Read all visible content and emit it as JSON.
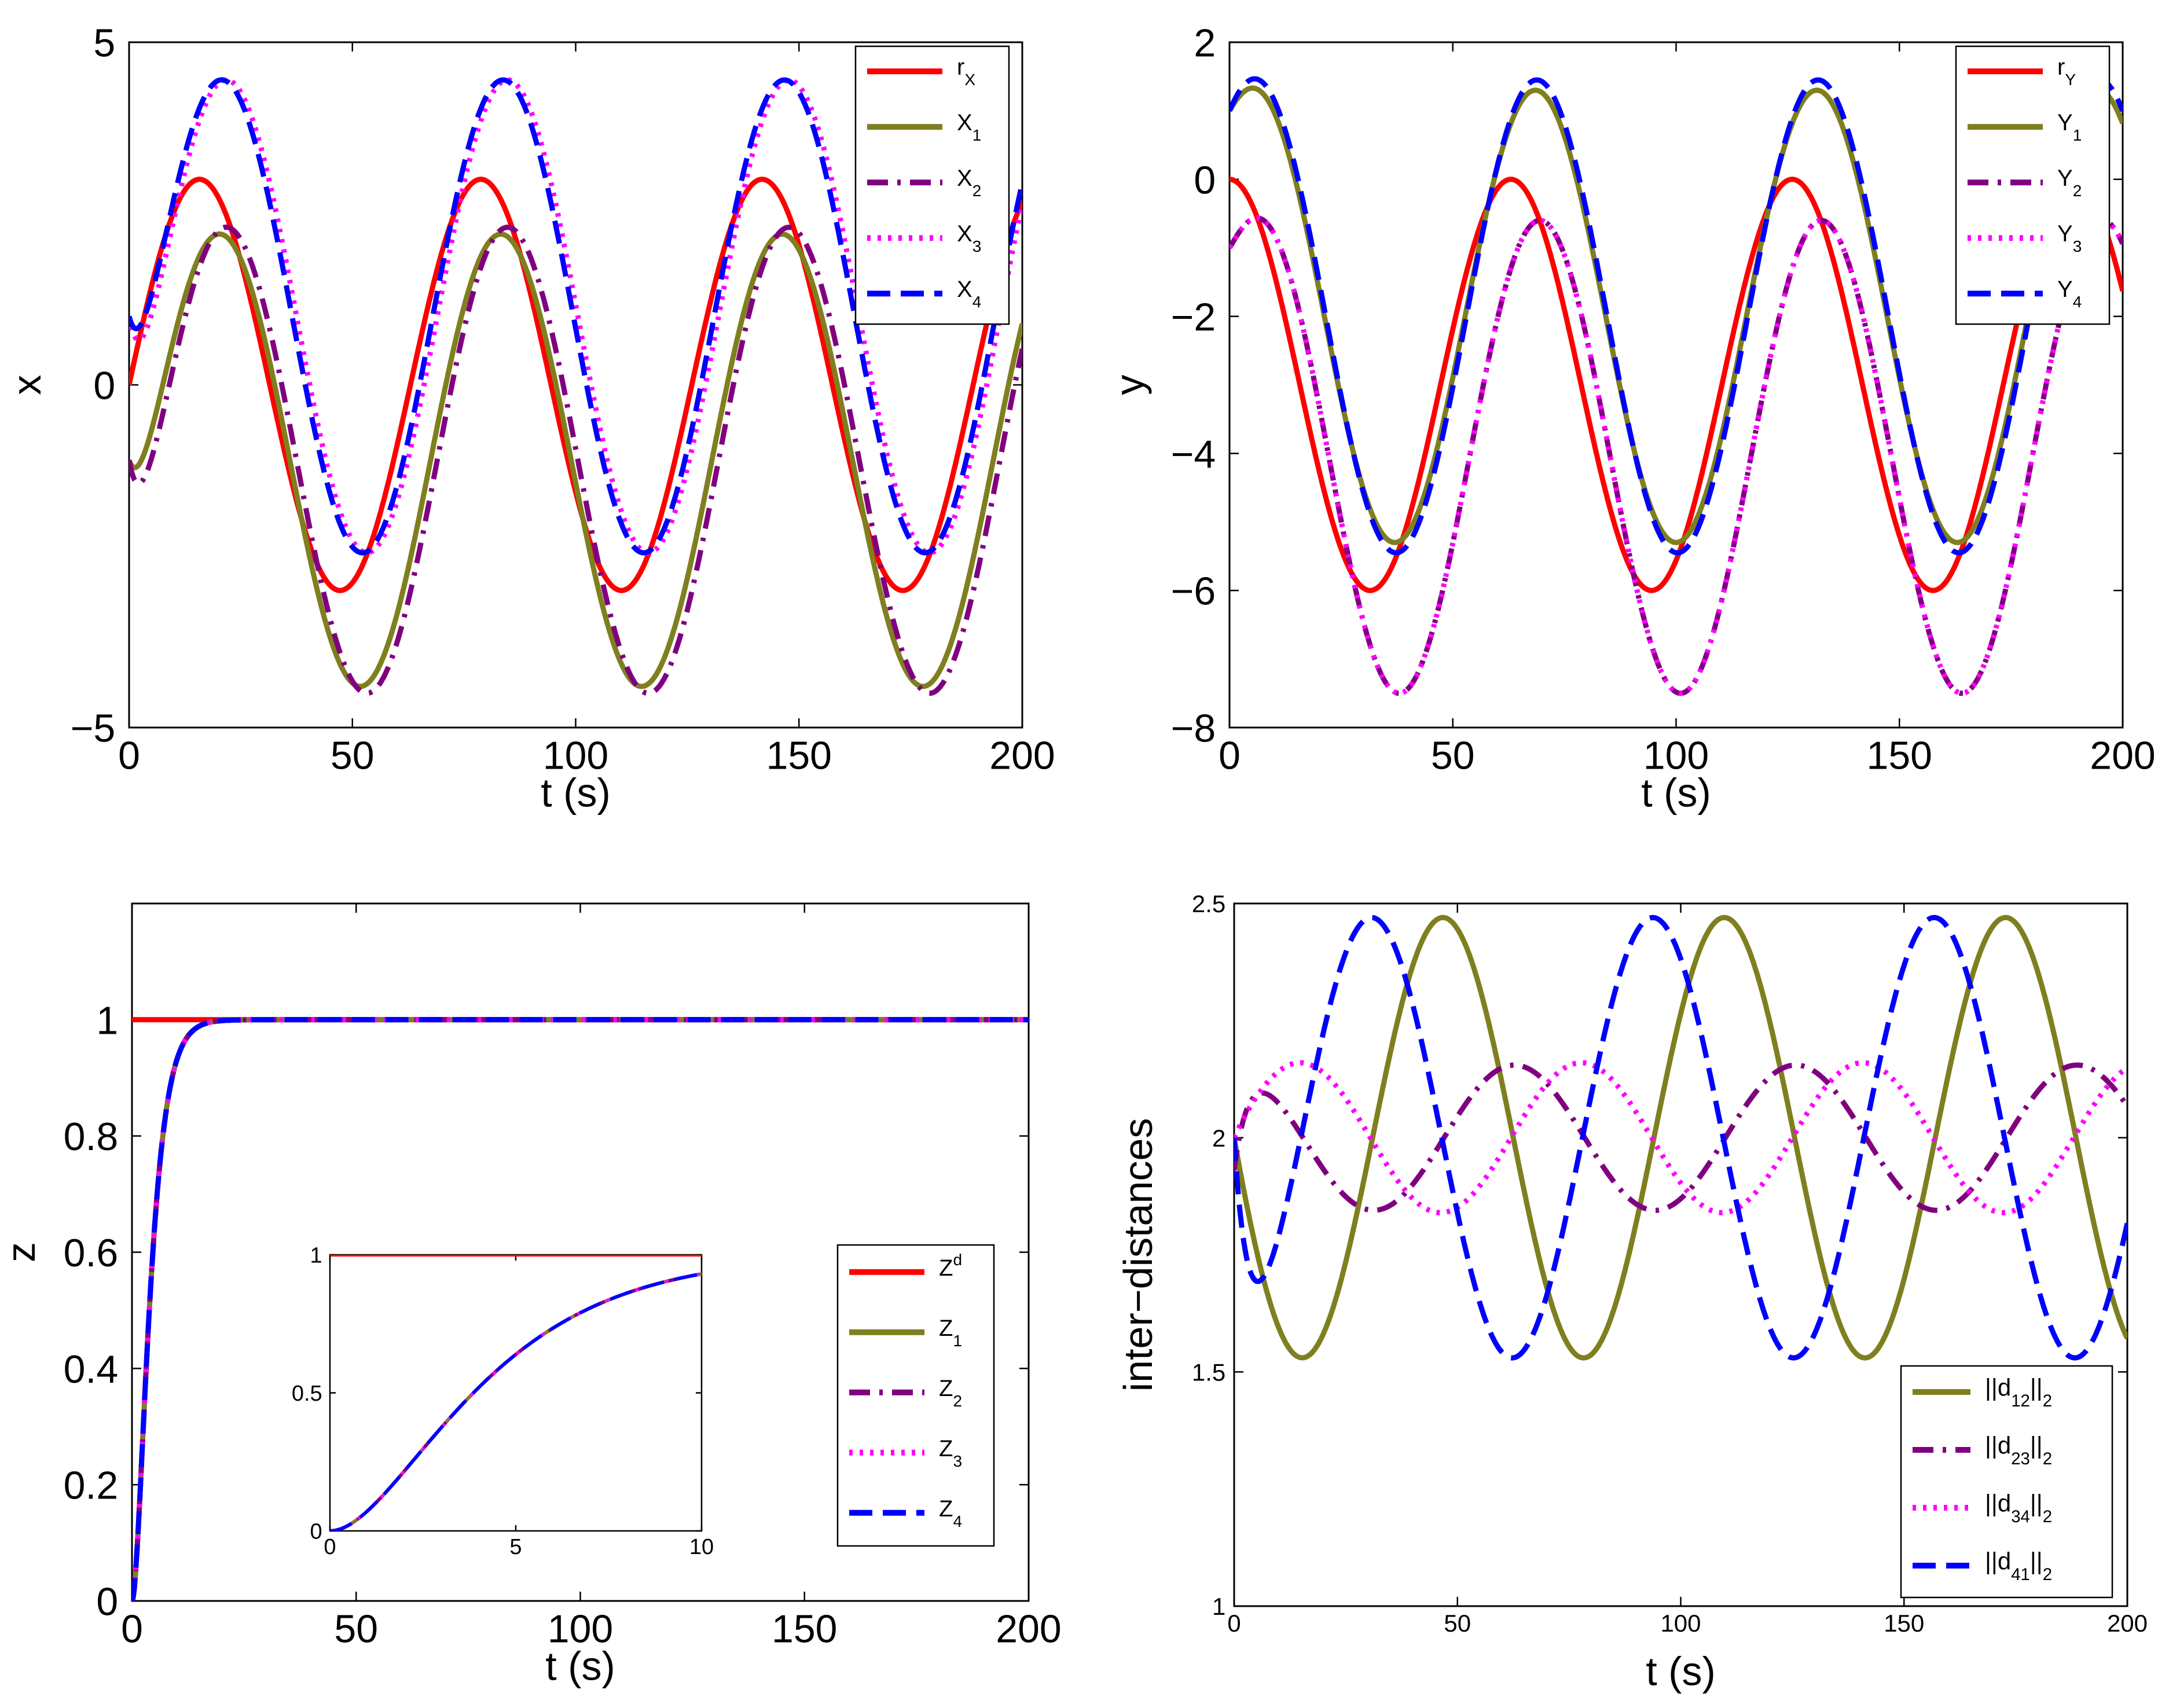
{
  "colors": {
    "red": "#ff0000",
    "olive": "#7f7f1f",
    "purple": "#800080",
    "magenta": "#ff00ff",
    "blue": "#0000ff"
  },
  "chart_data": [
    {
      "id": "x",
      "type": "line",
      "xlabel": "t (s)",
      "ylabel": "x",
      "xlim": [
        0,
        200
      ],
      "ylim": [
        -5,
        5
      ],
      "xticks": [
        0,
        50,
        100,
        150,
        200
      ],
      "xtick_labels": [
        "0",
        "50",
        "100",
        "150",
        "200"
      ],
      "yticks": [
        -5,
        0,
        5
      ],
      "ytick_labels": [
        "−5",
        "0",
        "5"
      ],
      "legend": "top-right",
      "series": [
        {
          "name": "r",
          "sub": "X",
          "sup": "",
          "color": "#ff0000",
          "style": "solid",
          "gen": {
            "type": "sine",
            "offset": 0,
            "amp": 3,
            "period": 63,
            "phase": 0,
            "a0": 0,
            "tau": 1
          }
        },
        {
          "name": "X",
          "sub": "1",
          "sup": "",
          "color": "#7f7f1f",
          "style": "solid",
          "gen": {
            "type": "sine",
            "offset": -1.1,
            "amp": 3.3,
            "period": 63,
            "phase": 4.5,
            "a0": -1.1,
            "tau": 3
          }
        },
        {
          "name": "X",
          "sub": "2",
          "sup": "",
          "color": "#800080",
          "style": "dashdot",
          "gen": {
            "type": "sine",
            "offset": -1.1,
            "amp": 3.4,
            "period": 63,
            "phase": 6,
            "a0": -1.1,
            "tau": 3
          }
        },
        {
          "name": "X",
          "sub": "3",
          "sup": "",
          "color": "#ff00ff",
          "style": "dotted",
          "gen": {
            "type": "sine",
            "offset": 1.0,
            "amp": 3.45,
            "period": 63,
            "phase": 6,
            "a0": 1.0,
            "tau": 3
          }
        },
        {
          "name": "X",
          "sub": "4",
          "sup": "",
          "color": "#0000ff",
          "style": "dashed",
          "gen": {
            "type": "sine",
            "offset": 1.0,
            "amp": 3.45,
            "period": 63,
            "phase": 5,
            "a0": 1.0,
            "tau": 3
          }
        }
      ]
    },
    {
      "id": "y",
      "type": "line",
      "xlabel": "t (s)",
      "ylabel": "y",
      "xlim": [
        0,
        200
      ],
      "ylim": [
        -8,
        2
      ],
      "xticks": [
        0,
        50,
        100,
        150,
        200
      ],
      "xtick_labels": [
        "0",
        "50",
        "100",
        "150",
        "200"
      ],
      "yticks": [
        -8,
        -6,
        -4,
        -2,
        0,
        2
      ],
      "ytick_labels": [
        "−8",
        "−6",
        "−4",
        "−2",
        "0",
        "2"
      ],
      "legend": "top-right",
      "series": [
        {
          "name": "r",
          "sub": "Y",
          "sup": "",
          "color": "#ff0000",
          "style": "solid",
          "gen": {
            "type": "cos",
            "offset": -3,
            "amp": 3,
            "period": 63,
            "phase": 0,
            "a0": 0,
            "tau": 1
          }
        },
        {
          "name": "Y",
          "sub": "1",
          "sup": "",
          "color": "#7f7f1f",
          "style": "solid",
          "gen": {
            "type": "cos",
            "offset": -2.0,
            "amp": 3.3,
            "period": 63,
            "phase": 5.5,
            "a0": 1.0,
            "tau": 3
          }
        },
        {
          "name": "Y",
          "sub": "2",
          "sup": "",
          "color": "#800080",
          "style": "dashdot",
          "gen": {
            "type": "cos",
            "offset": -4.05,
            "amp": 3.45,
            "period": 63,
            "phase": 6.5,
            "a0": -1.0,
            "tau": 3
          }
        },
        {
          "name": "Y",
          "sub": "3",
          "sup": "",
          "color": "#ff00ff",
          "style": "dotted",
          "gen": {
            "type": "cos",
            "offset": -4.05,
            "amp": 3.45,
            "period": 63,
            "phase": 6.5,
            "a0": -1.0,
            "tau": 3
          }
        },
        {
          "name": "Y",
          "sub": "4",
          "sup": "",
          "color": "#0000ff",
          "style": "dashed",
          "gen": {
            "type": "cos",
            "offset": -2.0,
            "amp": 3.45,
            "period": 63,
            "phase": 5.8,
            "a0": 1.0,
            "tau": 3
          }
        }
      ]
    },
    {
      "id": "z",
      "type": "line",
      "xlabel": "t (s)",
      "ylabel": "z",
      "xlim": [
        0,
        200
      ],
      "ylim": [
        0,
        1.2
      ],
      "xticks": [
        0,
        50,
        100,
        150,
        200
      ],
      "xtick_labels": [
        "0",
        "50",
        "100",
        "150",
        "200"
      ],
      "yticks": [
        0,
        0.2,
        0.4,
        0.6,
        0.8,
        1
      ],
      "ytick_labels": [
        "0",
        "0.2",
        "0.4",
        "0.6",
        "0.8",
        "1"
      ],
      "legend": "bottom-right",
      "series": [
        {
          "name": "Z",
          "sub": "",
          "sup": "d",
          "color": "#ff0000",
          "style": "solid",
          "gen": {
            "type": "const",
            "value": 1
          }
        },
        {
          "name": "Z",
          "sub": "1",
          "sup": "",
          "color": "#7f7f1f",
          "style": "solid",
          "gen": {
            "type": "rise",
            "k": 2.3
          }
        },
        {
          "name": "Z",
          "sub": "2",
          "sup": "",
          "color": "#800080",
          "style": "dashdot",
          "gen": {
            "type": "rise",
            "k": 2.3
          }
        },
        {
          "name": "Z",
          "sub": "3",
          "sup": "",
          "color": "#ff00ff",
          "style": "dotted",
          "gen": {
            "type": "rise",
            "k": 2.3
          }
        },
        {
          "name": "Z",
          "sub": "4",
          "sup": "",
          "color": "#0000ff",
          "style": "dashed",
          "gen": {
            "type": "rise",
            "k": 2.3
          }
        }
      ],
      "inset": {
        "xlim": [
          0,
          10
        ],
        "ylim": [
          0,
          1
        ],
        "xticks": [
          0,
          5,
          10
        ],
        "xtick_labels": [
          "0",
          "5",
          "10"
        ],
        "yticks": [
          0,
          0.5,
          1
        ],
        "ytick_labels": [
          "0",
          "0.5",
          "1"
        ]
      }
    },
    {
      "id": "d",
      "type": "line",
      "xlabel": "t (s)",
      "ylabel": "inter−distances",
      "xlim": [
        0,
        200
      ],
      "ylim": [
        1,
        2.5
      ],
      "xticks": [
        0,
        50,
        100,
        150,
        200
      ],
      "xtick_labels": [
        "0",
        "50",
        "100",
        "150",
        "200"
      ],
      "yticks": [
        1,
        1.5,
        2,
        2.5
      ],
      "ytick_labels": [
        "1",
        "1.5",
        "2",
        "2.5"
      ],
      "legend": "bottom-right",
      "series": [
        {
          "name": "||d",
          "sub": "12",
          "sup": "",
          "tail": "||",
          "tailsub": "2",
          "color": "#7f7f1f",
          "style": "solid",
          "gen": {
            "type": "dist",
            "offset": 2.0,
            "amp": 0.47,
            "period": 63,
            "phase": -32,
            "a0": 2.0,
            "tau": 3
          }
        },
        {
          "name": "||d",
          "sub": "23",
          "sup": "",
          "tail": "||",
          "tailsub": "2",
          "color": "#800080",
          "style": "dashdot",
          "gen": {
            "type": "dist",
            "offset": 2.0,
            "amp": 0.155,
            "period": 63,
            "phase": -16,
            "a0": 1.93,
            "tau": 3
          }
        },
        {
          "name": "||d",
          "sub": "34",
          "sup": "",
          "tail": "||",
          "tailsub": "2",
          "color": "#ff00ff",
          "style": "dotted",
          "gen": {
            "type": "dist",
            "offset": 2.0,
            "amp": 0.16,
            "period": 63,
            "phase": -1,
            "a0": 2.0,
            "tau": 3
          }
        },
        {
          "name": "||d",
          "sub": "41",
          "sup": "",
          "tail": "||",
          "tailsub": "2",
          "color": "#0000ff",
          "style": "dashed",
          "gen": {
            "type": "dist",
            "offset": 2.0,
            "amp": 0.47,
            "period": 63,
            "phase": -48,
            "a0": 2.0,
            "tau": 3
          }
        }
      ]
    }
  ]
}
